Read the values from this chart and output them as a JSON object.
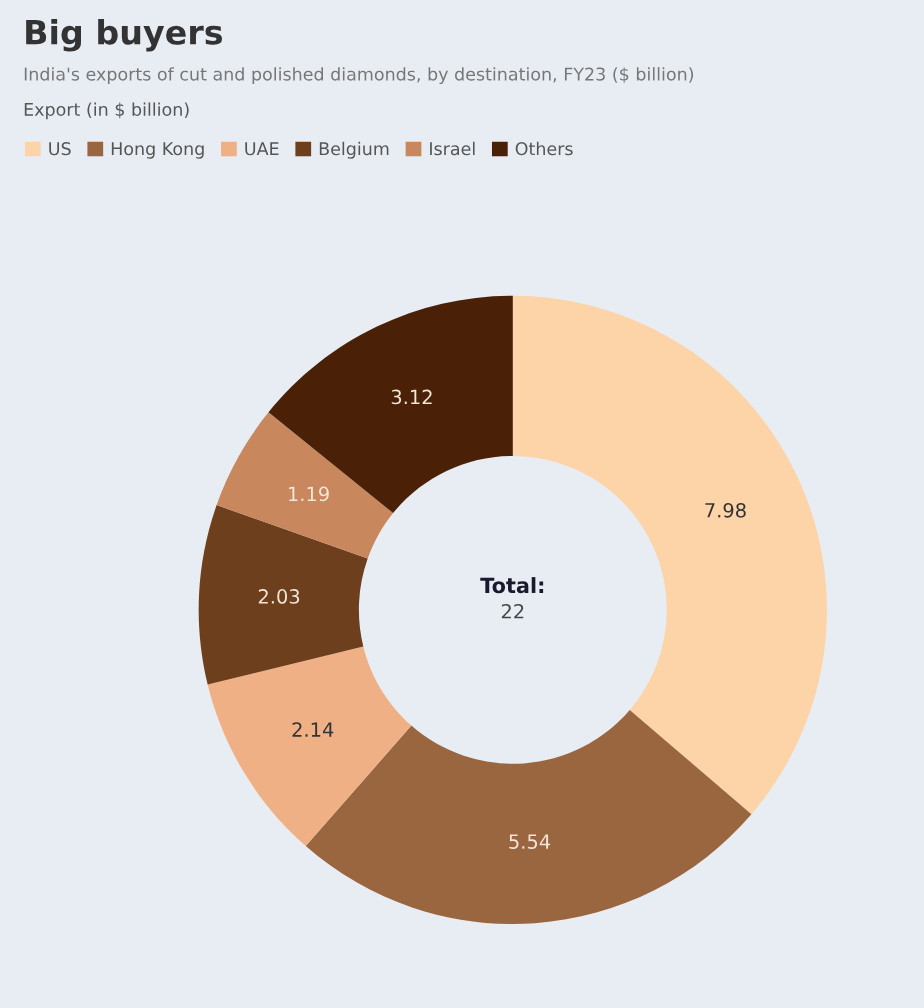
{
  "chart_data": {
    "type": "donut",
    "title": "Big buyers",
    "subtitle": "India's exports of cut and polished diamonds, by destination, FY23 ($ billion)",
    "legend_title": "Export (in $ billion)",
    "categories": [
      "US",
      "Hong Kong",
      "UAE",
      "Belgium",
      "Israel",
      "Others"
    ],
    "values": [
      7.98,
      5.54,
      2.14,
      2.03,
      1.19,
      3.12
    ],
    "colors": [
      "#fdd3a8",
      "#9a6640",
      "#f0b085",
      "#6e3f1d",
      "#c8875d",
      "#4a2106"
    ],
    "data_labels": true,
    "legend": "top left",
    "annotations": [
      "Total:",
      "22"
    ]
  }
}
